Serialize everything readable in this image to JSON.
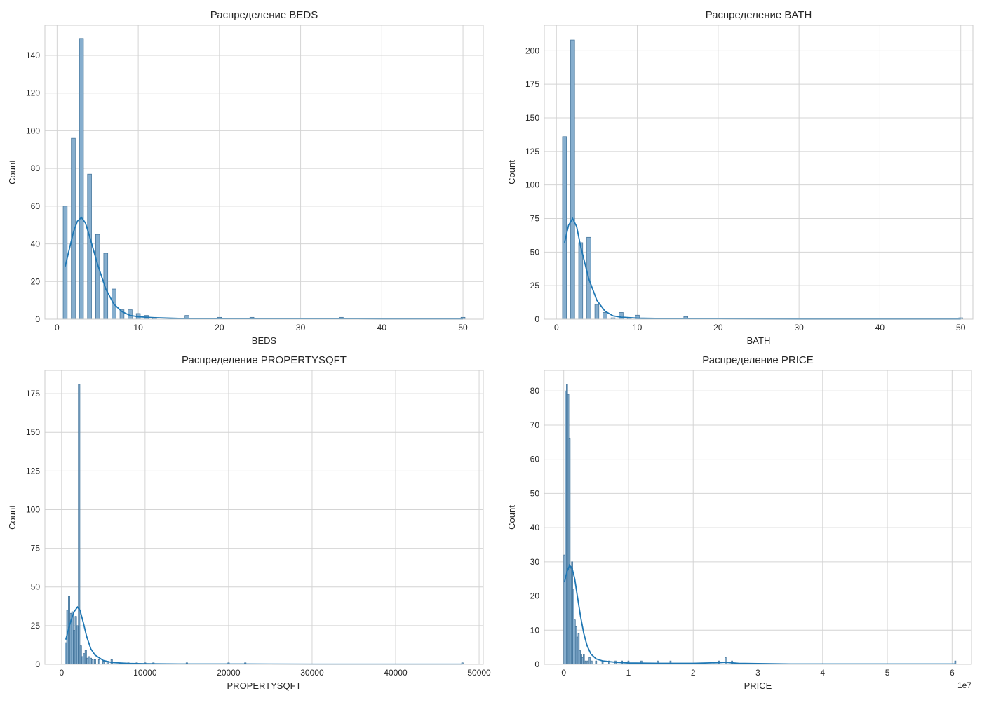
{
  "chart_data": [
    {
      "type": "histogram",
      "title": "Распределение BEDS",
      "xlabel": "BEDS",
      "ylabel": "Count",
      "xlim": [
        -1.5,
        52.5
      ],
      "ylim": [
        0,
        156
      ],
      "xticks": [
        0,
        10,
        20,
        30,
        40,
        50
      ],
      "yticks": [
        0,
        20,
        40,
        60,
        80,
        100,
        120,
        140
      ],
      "bin_width": 0.5,
      "bins": [
        [
          1,
          60
        ],
        [
          2,
          96
        ],
        [
          3,
          149
        ],
        [
          4,
          77
        ],
        [
          5,
          45
        ],
        [
          6,
          35
        ],
        [
          7,
          16
        ],
        [
          8,
          5
        ],
        [
          9,
          5
        ],
        [
          10,
          3
        ],
        [
          11,
          2
        ],
        [
          12,
          1
        ],
        [
          16,
          2
        ],
        [
          20,
          1
        ],
        [
          24,
          1
        ],
        [
          35,
          1
        ],
        [
          50,
          1
        ]
      ],
      "kde": [
        [
          1,
          28
        ],
        [
          1.5,
          37
        ],
        [
          2,
          46
        ],
        [
          2.5,
          52
        ],
        [
          3,
          54
        ],
        [
          3.5,
          51
        ],
        [
          4,
          44
        ],
        [
          5,
          29
        ],
        [
          6,
          16
        ],
        [
          7,
          8
        ],
        [
          8,
          4
        ],
        [
          9,
          2
        ],
        [
          10,
          1.3
        ],
        [
          12,
          0.8
        ],
        [
          15,
          0.4
        ],
        [
          20,
          0.3
        ],
        [
          30,
          0.2
        ],
        [
          40,
          0.1
        ],
        [
          50,
          0.1
        ]
      ]
    },
    {
      "type": "histogram",
      "title": "Распределение BATH",
      "xlabel": "BATH",
      "ylabel": "Count",
      "xlim": [
        -1.5,
        51.5
      ],
      "ylim": [
        0,
        219
      ],
      "xticks": [
        0,
        10,
        20,
        30,
        40,
        50
      ],
      "yticks": [
        0,
        25,
        50,
        75,
        100,
        125,
        150,
        175,
        200
      ],
      "bin_width": 0.5,
      "bins": [
        [
          1,
          136
        ],
        [
          2,
          208
        ],
        [
          3,
          57
        ],
        [
          4,
          61
        ],
        [
          5,
          11
        ],
        [
          6,
          5
        ],
        [
          7,
          1
        ],
        [
          8,
          5
        ],
        [
          9,
          1
        ],
        [
          10,
          3
        ],
        [
          16,
          2
        ],
        [
          50,
          1
        ]
      ],
      "kde": [
        [
          1,
          57
        ],
        [
          1.5,
          70
        ],
        [
          2,
          75
        ],
        [
          2.5,
          69
        ],
        [
          3,
          54
        ],
        [
          4,
          30
        ],
        [
          5,
          14
        ],
        [
          6,
          6
        ],
        [
          7,
          2.5
        ],
        [
          8,
          1.5
        ],
        [
          10,
          0.8
        ],
        [
          13,
          0.5
        ],
        [
          16,
          0.4
        ],
        [
          20,
          0.2
        ],
        [
          30,
          0.1
        ],
        [
          50,
          0.1
        ]
      ]
    },
    {
      "type": "histogram",
      "title": "Распределение PROPERTYSQFT",
      "xlabel": "PROPERTYSQFT",
      "ylabel": "Count",
      "xlim": [
        -2000,
        50500
      ],
      "ylim": [
        0,
        190
      ],
      "xticks": [
        0,
        10000,
        20000,
        30000,
        40000,
        50000
      ],
      "yticks": [
        0,
        25,
        50,
        75,
        100,
        125,
        150,
        175
      ],
      "bin_width": 190,
      "bins": [
        [
          500,
          14
        ],
        [
          700,
          35
        ],
        [
          900,
          44
        ],
        [
          1100,
          33
        ],
        [
          1300,
          34
        ],
        [
          1500,
          22
        ],
        [
          1700,
          31
        ],
        [
          1900,
          25
        ],
        [
          2100,
          181
        ],
        [
          2300,
          12
        ],
        [
          2500,
          5
        ],
        [
          2700,
          7
        ],
        [
          2900,
          9
        ],
        [
          3100,
          4
        ],
        [
          3300,
          5
        ],
        [
          3500,
          4
        ],
        [
          3700,
          3
        ],
        [
          4000,
          3
        ],
        [
          4500,
          3
        ],
        [
          5000,
          2
        ],
        [
          5500,
          2
        ],
        [
          6000,
          3
        ],
        [
          7000,
          1
        ],
        [
          8000,
          1
        ],
        [
          9000,
          1
        ],
        [
          10000,
          1
        ],
        [
          11000,
          1
        ],
        [
          15000,
          1
        ],
        [
          20000,
          1
        ],
        [
          22000,
          1
        ],
        [
          48000,
          1
        ]
      ],
      "kde": [
        [
          500,
          16
        ],
        [
          800,
          22
        ],
        [
          1100,
          28
        ],
        [
          1500,
          34
        ],
        [
          1900,
          37
        ],
        [
          2200,
          35
        ],
        [
          2600,
          27
        ],
        [
          3000,
          18
        ],
        [
          3500,
          10
        ],
        [
          4000,
          6
        ],
        [
          5000,
          2.5
        ],
        [
          6000,
          1.2
        ],
        [
          8000,
          0.6
        ],
        [
          10000,
          0.4
        ],
        [
          15000,
          0.2
        ],
        [
          22000,
          0.2
        ],
        [
          30000,
          0.1
        ],
        [
          48000,
          0.1
        ]
      ]
    },
    {
      "type": "histogram",
      "title": "Распределение PRICE",
      "xlabel": "PRICE",
      "ylabel": "Count",
      "offset_label": "1e7",
      "xlim": [
        -3000000,
        63000000
      ],
      "ylim": [
        0,
        86
      ],
      "xticks": [
        0,
        10000000,
        20000000,
        30000000,
        40000000,
        50000000,
        60000000
      ],
      "tick_labels": [
        "0",
        "1",
        "2",
        "3",
        "4",
        "5",
        "6"
      ],
      "yticks": [
        0,
        10,
        20,
        30,
        40,
        50,
        60,
        70,
        80
      ],
      "bin_width": 200000,
      "bins": [
        [
          100000,
          32
        ],
        [
          300000,
          80
        ],
        [
          500000,
          82
        ],
        [
          700000,
          79
        ],
        [
          900000,
          66
        ],
        [
          1100000,
          28
        ],
        [
          1300000,
          30
        ],
        [
          1500000,
          22
        ],
        [
          1700000,
          13
        ],
        [
          1900000,
          11
        ],
        [
          2100000,
          8
        ],
        [
          2300000,
          9
        ],
        [
          2500000,
          4
        ],
        [
          2700000,
          3
        ],
        [
          2900000,
          2
        ],
        [
          3100000,
          3
        ],
        [
          3400000,
          1
        ],
        [
          3700000,
          1
        ],
        [
          4000000,
          2
        ],
        [
          4300000,
          1
        ],
        [
          5000000,
          1
        ],
        [
          6000000,
          1
        ],
        [
          7000000,
          1
        ],
        [
          8000000,
          1
        ],
        [
          9000000,
          1
        ],
        [
          10000000,
          1
        ],
        [
          12000000,
          1
        ],
        [
          14500000,
          1
        ],
        [
          16500000,
          1
        ],
        [
          24000000,
          1
        ],
        [
          25000000,
          2
        ],
        [
          26000000,
          1
        ],
        [
          60500000,
          1
        ]
      ],
      "kde": [
        [
          100000,
          24
        ],
        [
          500000,
          27
        ],
        [
          900000,
          29
        ],
        [
          1300000,
          28
        ],
        [
          1700000,
          25
        ],
        [
          2100000,
          20
        ],
        [
          2600000,
          14
        ],
        [
          3100000,
          9
        ],
        [
          3600000,
          5.5
        ],
        [
          4200000,
          3
        ],
        [
          5000000,
          1.6
        ],
        [
          6000000,
          1
        ],
        [
          8000000,
          0.6
        ],
        [
          10000000,
          0.4
        ],
        [
          15000000,
          0.3
        ],
        [
          20000000,
          0.3
        ],
        [
          24000000,
          0.5
        ],
        [
          25000000,
          0.6
        ],
        [
          27000000,
          0.3
        ],
        [
          35000000,
          0.1
        ],
        [
          60500000,
          0.1
        ]
      ]
    }
  ]
}
